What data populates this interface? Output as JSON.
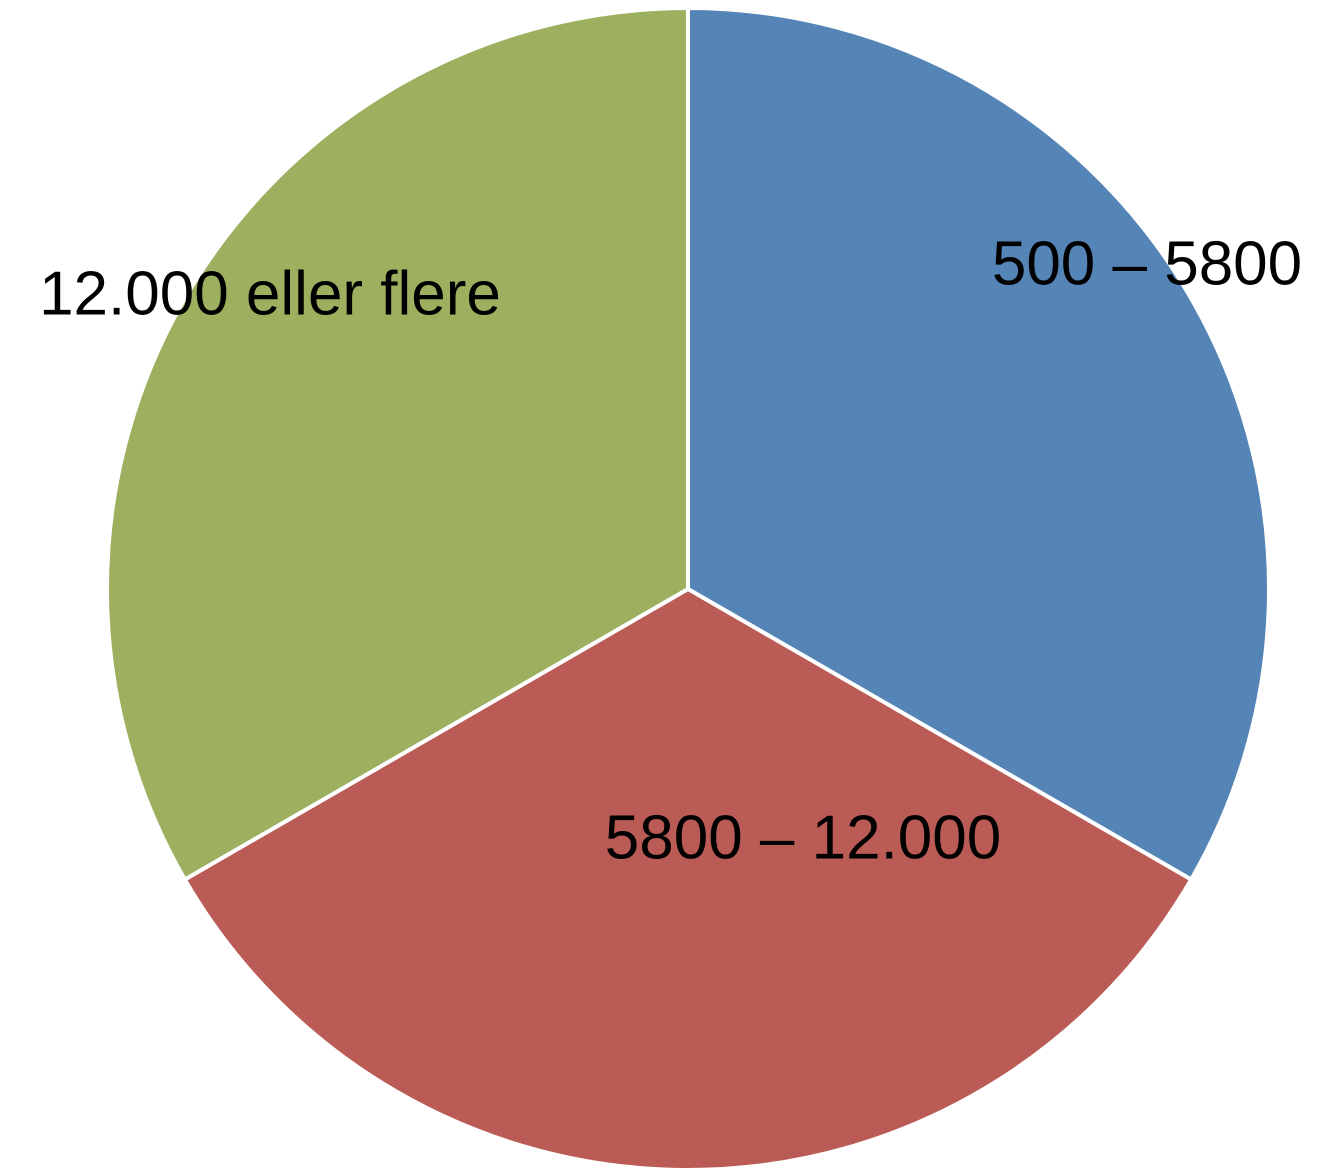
{
  "chart_data": {
    "type": "pie",
    "categories": [
      "500 – 5800",
      "5800 – 12.000",
      "12.000 eller flere"
    ],
    "values": [
      33.3,
      33.3,
      33.3
    ],
    "colors": [
      "#5584b6",
      "#bb5b55",
      "#9cb05f"
    ]
  }
}
